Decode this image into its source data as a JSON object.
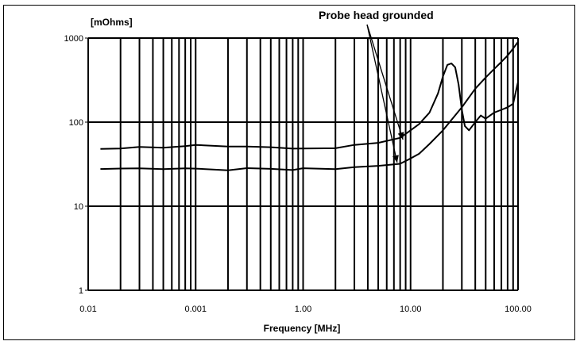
{
  "chart_data": {
    "type": "line",
    "title": "",
    "xlabel": "Frequency [MHz]",
    "ylabel": "[mOhms]",
    "x_scale": "log",
    "y_scale": "log",
    "xlim": [
      0.01,
      100
    ],
    "ylim": [
      1,
      1000
    ],
    "x_tick_labels": [
      "0.01",
      "0.001",
      "1.00",
      "10.00",
      "100.00"
    ],
    "y_tick_labels": [
      "1",
      "10",
      "100",
      "1000"
    ],
    "grid": true,
    "legend": "none",
    "annotation": "Probe head grounded",
    "series": [
      {
        "x": [
          0.013,
          0.02,
          0.03,
          0.05,
          0.08,
          0.1,
          0.2,
          0.3,
          0.5,
          0.8,
          1,
          2,
          3,
          5,
          8,
          10,
          12,
          15,
          18,
          20,
          22,
          24,
          26,
          28,
          30,
          32,
          35,
          40,
          45,
          50,
          55,
          60,
          70,
          80,
          90,
          100
        ],
        "values": [
          48,
          49,
          50,
          50,
          52,
          53,
          52,
          51,
          50,
          49,
          48,
          49,
          54,
          56,
          65,
          80,
          95,
          130,
          220,
          350,
          480,
          500,
          450,
          280,
          140,
          90,
          80,
          100,
          120,
          110,
          120,
          130,
          140,
          150,
          165,
          300
        ]
      },
      {
        "x": [
          0.013,
          0.02,
          0.03,
          0.05,
          0.08,
          0.1,
          0.2,
          0.3,
          0.5,
          0.8,
          1,
          2,
          3,
          5,
          8,
          10,
          12,
          15,
          20,
          30,
          40,
          50,
          60,
          70,
          80,
          90,
          100
        ],
        "values": [
          28,
          28,
          28,
          28,
          28,
          28,
          27,
          28,
          28,
          27,
          28,
          28,
          29,
          30,
          32,
          37,
          42,
          55,
          80,
          150,
          250,
          340,
          430,
          520,
          620,
          750,
          900
        ]
      }
    ]
  }
}
